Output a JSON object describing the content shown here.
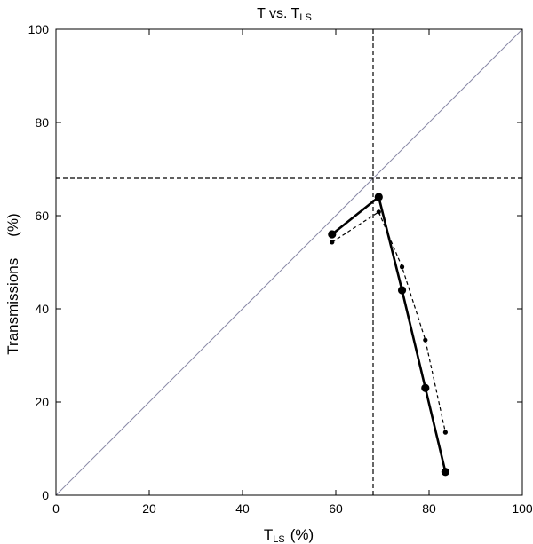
{
  "chart_data": {
    "type": "line",
    "title": {
      "main": "T vs. T",
      "sub": "LS"
    },
    "xlabel": {
      "main": "T",
      "sub": "LS",
      "unit": "(%)"
    },
    "ylabel": {
      "main": "Transmissions",
      "unit": "(%)"
    },
    "xlim": [
      0,
      100
    ],
    "ylim": [
      0,
      100
    ],
    "xticks": [
      0,
      20,
      40,
      60,
      80,
      100
    ],
    "yticks": [
      0,
      20,
      40,
      60,
      80,
      100
    ],
    "grid": false,
    "reference_lines": {
      "diagonal": true,
      "vertical_x": 68,
      "horizontal_y": 68
    },
    "series": [
      {
        "style": "solid-thick",
        "x": [
          59.2,
          69.2,
          74.2,
          79.2,
          83.5
        ],
        "y": [
          56,
          64,
          44,
          23,
          5
        ]
      },
      {
        "style": "dashed-thin",
        "x": [
          59.2,
          69.2,
          74.2,
          79.2,
          83.5
        ],
        "y": [
          54.3,
          60.8,
          49,
          33.3,
          13.5
        ]
      }
    ],
    "colors": {
      "diagonal": "#8a8aa8",
      "series": "#000000"
    }
  }
}
